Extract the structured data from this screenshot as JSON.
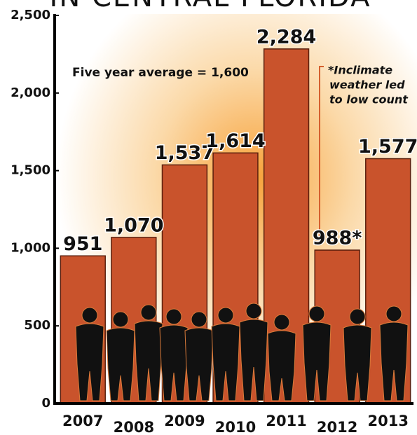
{
  "chart_data": {
    "type": "bar",
    "title": "IN CENTRAL FLORIDA",
    "categories": [
      "2007",
      "2008",
      "2009",
      "2010",
      "2011",
      "2012",
      "2013"
    ],
    "values": [
      951,
      1070,
      1537,
      1614,
      2284,
      988,
      1577
    ],
    "value_labels": [
      "951",
      "1,070",
      "1,537",
      "1,614",
      "2,284",
      "988*",
      "1,577"
    ],
    "color": "#c9532c",
    "ylim": [
      0,
      2500
    ],
    "yticks": [
      0,
      500,
      {
        "value": 1000,
        "label": "1,000"
      },
      {
        "value": 1500,
        "label": "1,500"
      },
      {
        "value": 2000,
        "label": "2,000"
      },
      {
        "value": 2500,
        "label": "2,500"
      }
    ],
    "grid": false,
    "average_note": "Five year average = 1,600",
    "footnote_lines": [
      "*Inclimate",
      "weather led",
      "to low count"
    ]
  }
}
